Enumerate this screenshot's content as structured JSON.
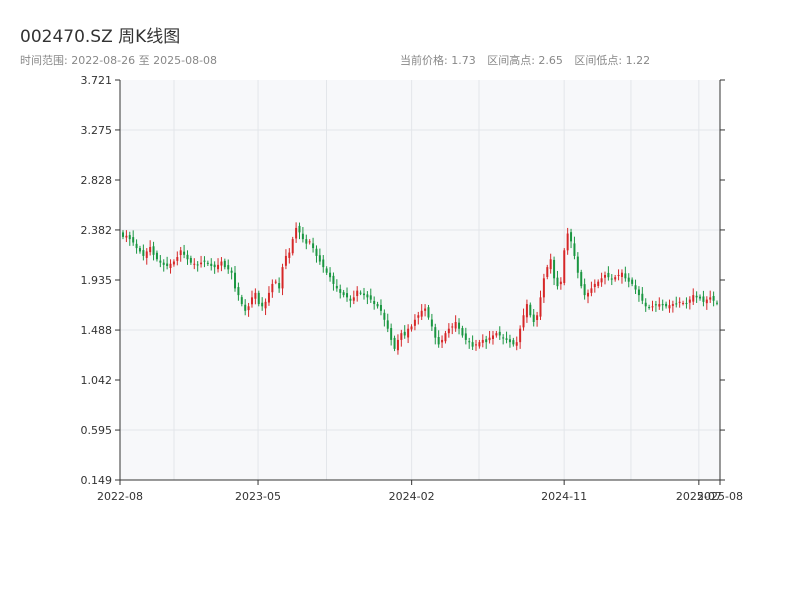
{
  "title": "002470.SZ 周K线图",
  "subtitle": {
    "range": "时间范围: 2022-08-26 至 2025-08-08",
    "current": "当前价格: 1.73",
    "high": "区间高点: 2.65",
    "low": "区间低点: 1.22"
  },
  "colors": {
    "up": "#d62728",
    "down": "#1a9641",
    "plot_bg": "#f7f8fa",
    "grid": "#e3e6ea",
    "axis": "#333333"
  },
  "chart_data": {
    "type": "candlestick",
    "ylim": [
      0.149,
      3.721
    ],
    "yticks": [
      "0.149",
      "0.595",
      "1.042",
      "1.488",
      "1.935",
      "2.382",
      "2.828",
      "3.275",
      "3.721"
    ],
    "xlim": [
      "2022-08-26",
      "2025-08-08"
    ],
    "xticks": [
      {
        "label": "2022-08",
        "date": "2022-08-26"
      },
      {
        "label": "2023-05",
        "date": "2023-05-01"
      },
      {
        "label": "2024-02",
        "date": "2024-02-01"
      },
      {
        "label": "2024-11",
        "date": "2024-11-01"
      },
      {
        "label": "2025-07",
        "date": "2025-07-01"
      },
      {
        "label": "2025-08",
        "date": "2025-08-08"
      }
    ],
    "grid": true,
    "close_series": [
      2.32,
      2.33,
      2.3,
      2.27,
      2.22,
      2.19,
      2.15,
      2.19,
      2.23,
      2.16,
      2.12,
      2.09,
      2.07,
      2.06,
      2.08,
      2.1,
      2.14,
      2.2,
      2.16,
      2.12,
      2.09,
      2.08,
      2.07,
      2.09,
      2.1,
      2.08,
      2.06,
      2.05,
      2.07,
      2.1,
      2.05,
      2.03,
      2.0,
      1.86,
      1.8,
      1.72,
      1.66,
      1.7,
      1.78,
      1.82,
      1.72,
      1.7,
      1.74,
      1.82,
      1.9,
      1.92,
      1.86,
      2.05,
      2.15,
      2.18,
      2.3,
      2.4,
      2.36,
      2.3,
      2.26,
      2.28,
      2.22,
      2.15,
      2.1,
      2.05,
      2.0,
      1.96,
      1.9,
      1.86,
      1.82,
      1.8,
      1.78,
      1.75,
      1.78,
      1.84,
      1.82,
      1.8,
      1.78,
      1.76,
      1.72,
      1.7,
      1.66,
      1.58,
      1.5,
      1.4,
      1.32,
      1.4,
      1.46,
      1.44,
      1.5,
      1.52,
      1.58,
      1.62,
      1.66,
      1.68,
      1.6,
      1.52,
      1.42,
      1.36,
      1.4,
      1.46,
      1.5,
      1.52,
      1.56,
      1.5,
      1.44,
      1.4,
      1.38,
      1.34,
      1.36,
      1.38,
      1.4,
      1.38,
      1.42,
      1.44,
      1.46,
      1.44,
      1.42,
      1.4,
      1.38,
      1.36,
      1.38,
      1.5,
      1.62,
      1.72,
      1.62,
      1.56,
      1.62,
      1.78,
      1.95,
      2.05,
      2.12,
      1.95,
      1.88,
      1.92,
      2.2,
      2.35,
      2.28,
      2.15,
      2.0,
      1.88,
      1.8,
      1.82,
      1.86,
      1.9,
      1.92,
      1.95,
      1.98,
      1.96,
      1.94,
      1.96,
      1.98,
      2.0,
      1.95,
      1.92,
      1.9,
      1.85,
      1.8,
      1.75,
      1.7,
      1.69,
      1.7,
      1.71,
      1.72,
      1.71,
      1.7,
      1.71,
      1.72,
      1.72,
      1.74,
      1.73,
      1.72,
      1.76,
      1.8,
      1.78,
      1.77,
      1.74,
      1.76,
      1.78,
      1.75,
      1.73
    ]
  }
}
